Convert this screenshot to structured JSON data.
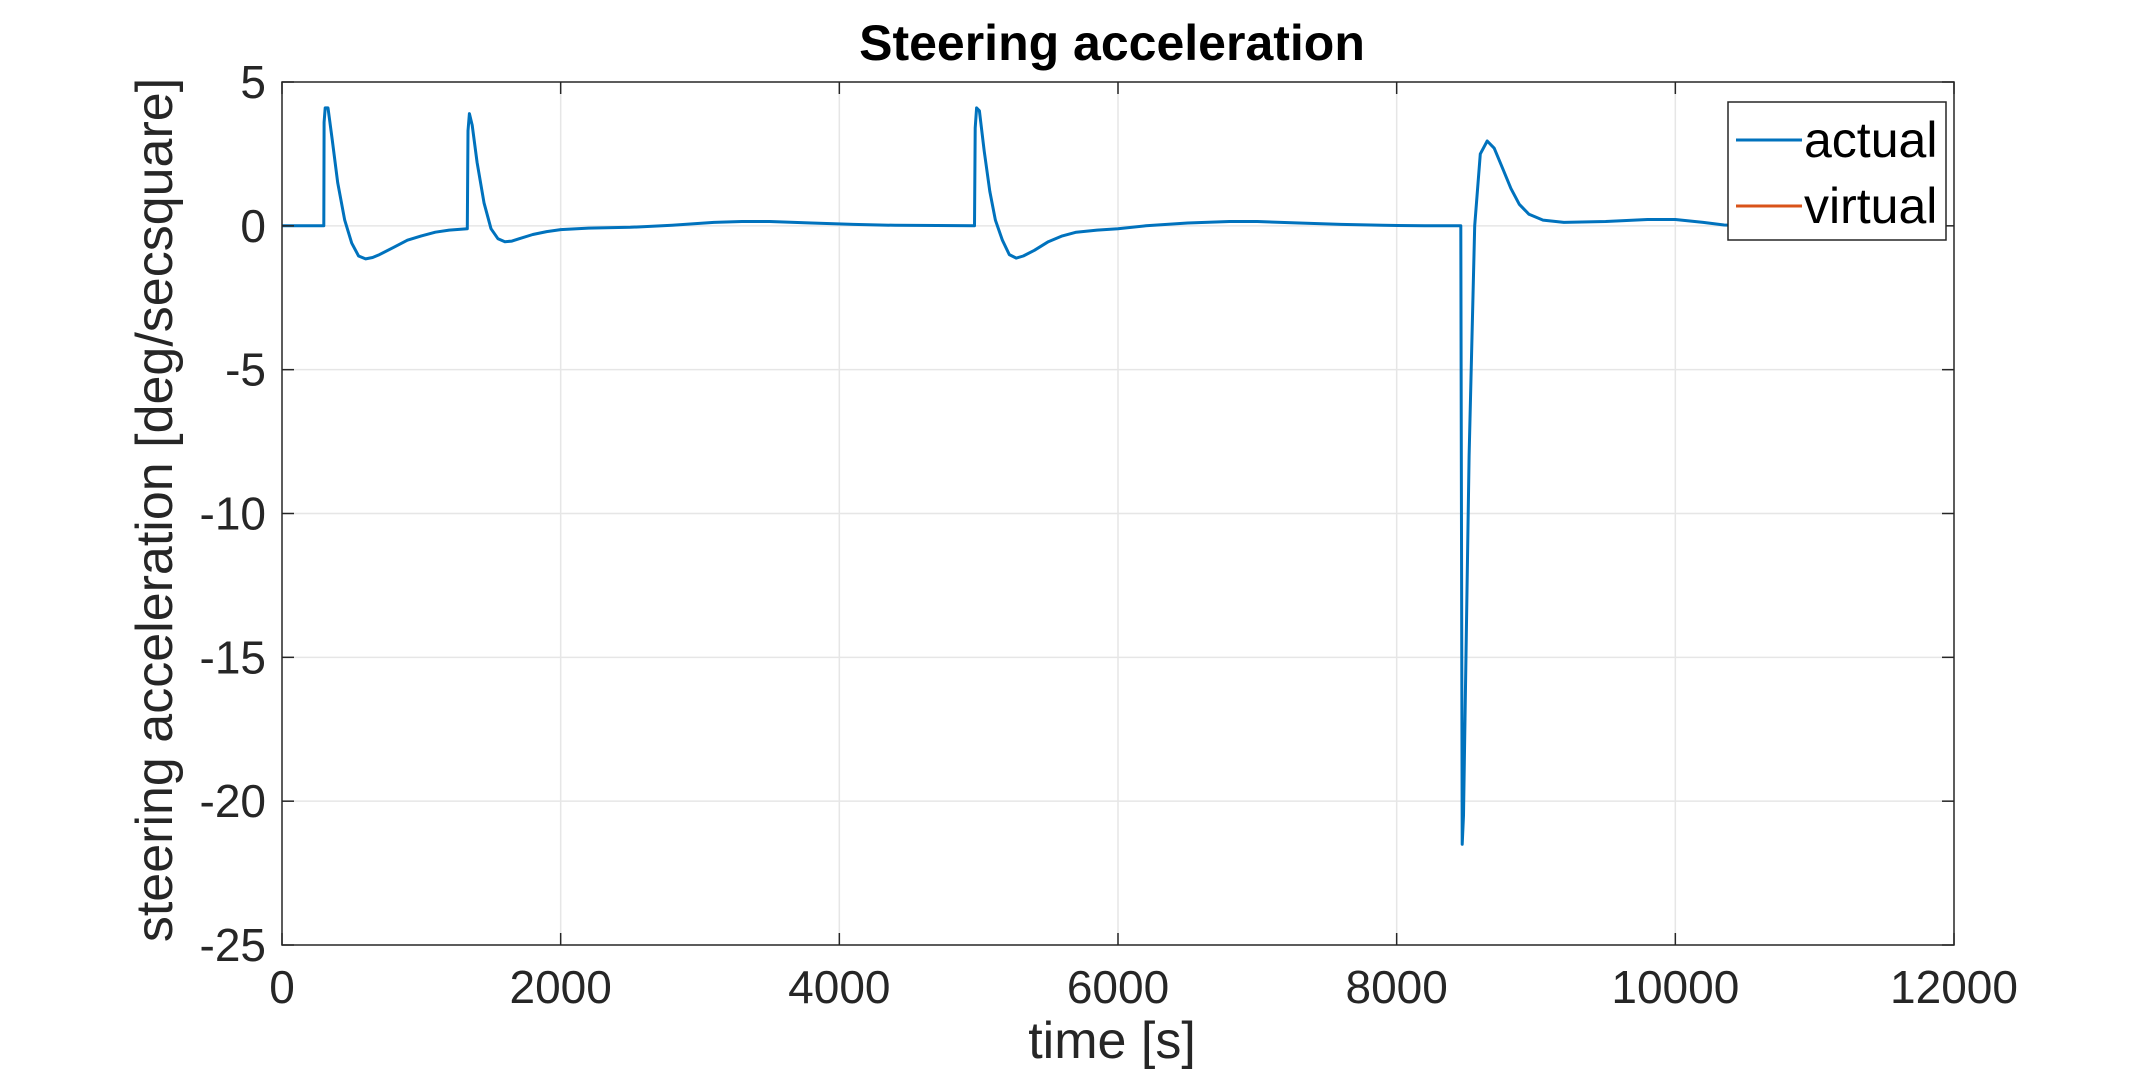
{
  "chart_data": {
    "type": "line",
    "title": "Steering acceleration",
    "xlabel": "time [s]",
    "ylabel": "steering acceleration [deg/secsquare]",
    "xlim": [
      0,
      12000
    ],
    "ylim": [
      -25,
      5
    ],
    "xticks": [
      0,
      2000,
      4000,
      6000,
      8000,
      10000,
      12000
    ],
    "xtick_labels": [
      "0",
      "2000",
      "4000",
      "6000",
      "8000",
      "10000",
      "12000"
    ],
    "yticks": [
      5,
      0,
      -5,
      -10,
      -15,
      -20,
      -25
    ],
    "ytick_labels": [
      "5",
      "0",
      "-5",
      "-10",
      "-15",
      "-20",
      "-25"
    ],
    "grid": true,
    "legend_position": "top-right",
    "series": [
      {
        "name": "actual",
        "color": "#0072BD",
        "points": [
          [
            0,
            0
          ],
          [
            300,
            0
          ],
          [
            302,
            3.6
          ],
          [
            310,
            4.1
          ],
          [
            330,
            4.1
          ],
          [
            360,
            3.0
          ],
          [
            400,
            1.5
          ],
          [
            450,
            0.2
          ],
          [
            500,
            -0.6
          ],
          [
            550,
            -1.05
          ],
          [
            600,
            -1.15
          ],
          [
            650,
            -1.1
          ],
          [
            700,
            -1.0
          ],
          [
            800,
            -0.75
          ],
          [
            900,
            -0.5
          ],
          [
            1000,
            -0.35
          ],
          [
            1100,
            -0.22
          ],
          [
            1200,
            -0.15
          ],
          [
            1330,
            -0.1
          ],
          [
            1335,
            3.3
          ],
          [
            1345,
            3.9
          ],
          [
            1365,
            3.5
          ],
          [
            1400,
            2.2
          ],
          [
            1450,
            0.8
          ],
          [
            1500,
            -0.1
          ],
          [
            1550,
            -0.45
          ],
          [
            1600,
            -0.55
          ],
          [
            1650,
            -0.53
          ],
          [
            1700,
            -0.45
          ],
          [
            1800,
            -0.3
          ],
          [
            1900,
            -0.2
          ],
          [
            2000,
            -0.13
          ],
          [
            2200,
            -0.08
          ],
          [
            2500,
            -0.05
          ],
          [
            2800,
            0.02
          ],
          [
            3100,
            0.12
          ],
          [
            3300,
            0.15
          ],
          [
            3500,
            0.15
          ],
          [
            3800,
            0.1
          ],
          [
            4100,
            0.05
          ],
          [
            4400,
            0.02
          ],
          [
            4700,
            0.01
          ],
          [
            4970,
            0.0
          ],
          [
            4975,
            3.4
          ],
          [
            4985,
            4.1
          ],
          [
            5005,
            4.0
          ],
          [
            5040,
            2.6
          ],
          [
            5080,
            1.2
          ],
          [
            5120,
            0.2
          ],
          [
            5170,
            -0.5
          ],
          [
            5220,
            -1.0
          ],
          [
            5270,
            -1.12
          ],
          [
            5320,
            -1.05
          ],
          [
            5400,
            -0.85
          ],
          [
            5500,
            -0.55
          ],
          [
            5600,
            -0.35
          ],
          [
            5700,
            -0.22
          ],
          [
            5850,
            -0.15
          ],
          [
            6000,
            -0.1
          ],
          [
            6200,
            0.0
          ],
          [
            6500,
            0.1
          ],
          [
            6800,
            0.15
          ],
          [
            7000,
            0.15
          ],
          [
            7300,
            0.1
          ],
          [
            7600,
            0.05
          ],
          [
            7900,
            0.02
          ],
          [
            8200,
            0.0
          ],
          [
            8460,
            0.0
          ],
          [
            8470,
            -21.5
          ],
          [
            8480,
            -20.5
          ],
          [
            8520,
            -8.0
          ],
          [
            8560,
            0.0
          ],
          [
            8600,
            2.5
          ],
          [
            8650,
            2.95
          ],
          [
            8700,
            2.7
          ],
          [
            8760,
            2.0
          ],
          [
            8820,
            1.3
          ],
          [
            8880,
            0.75
          ],
          [
            8950,
            0.4
          ],
          [
            9050,
            0.2
          ],
          [
            9200,
            0.12
          ],
          [
            9500,
            0.15
          ],
          [
            9800,
            0.22
          ],
          [
            10000,
            0.22
          ],
          [
            10200,
            0.12
          ],
          [
            10350,
            0.03
          ],
          [
            10500,
            0.0
          ]
        ]
      },
      {
        "name": "virtual",
        "color": "#D95319",
        "points": []
      }
    ]
  }
}
